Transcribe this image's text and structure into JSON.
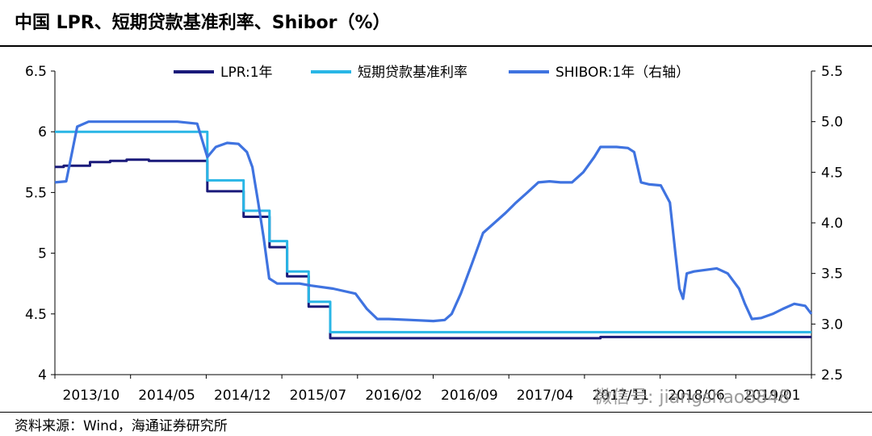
{
  "header": {
    "title": "中国 LPR、短期贷款基准利率、Shibor（%）"
  },
  "footer": {
    "source": "资料来源：Wind，海通证券研究所"
  },
  "watermark": {
    "text": "微信号: jiangshao8848"
  },
  "chart_data": {
    "type": "line",
    "title": "中国 LPR、短期贷款基准利率、Shibor（%）",
    "x_ticks": [
      "2013/10",
      "2014/05",
      "2014/12",
      "2015/07",
      "2016/02",
      "2016/09",
      "2017/04",
      "2017/11",
      "2018/06",
      "2019/01"
    ],
    "xlim": [
      "2013-10-01",
      "2019-06-01"
    ],
    "y_left": {
      "lim": [
        4,
        6.5
      ],
      "ticks": [
        "4",
        "4.5",
        "5",
        "5.5",
        "6",
        "6.5"
      ]
    },
    "y_right": {
      "lim": [
        2.5,
        5.5
      ],
      "ticks": [
        "2.5",
        "3.0",
        "3.5",
        "4.0",
        "4.5",
        "5.0",
        "5.5"
      ]
    },
    "legend_position": "top",
    "grid": false,
    "series": [
      {
        "name": "LPR:1年",
        "axis": "left",
        "color": "#1a1a7a",
        "step": true,
        "points": [
          [
            "2013-10-01",
            5.71
          ],
          [
            "2013-10-25",
            5.72
          ],
          [
            "2014-01-05",
            5.75
          ],
          [
            "2014-03-01",
            5.76
          ],
          [
            "2014-04-15",
            5.77
          ],
          [
            "2014-06-15",
            5.76
          ],
          [
            "2014-11-22",
            5.51
          ],
          [
            "2015-03-01",
            5.3
          ],
          [
            "2015-05-11",
            5.05
          ],
          [
            "2015-06-28",
            4.81
          ],
          [
            "2015-08-26",
            4.56
          ],
          [
            "2015-10-24",
            4.3
          ],
          [
            "2017-11-01",
            4.31
          ],
          [
            "2019-06-01",
            4.31
          ]
        ]
      },
      {
        "name": "短期贷款基准利率",
        "axis": "left",
        "color": "#29b6e6",
        "step": true,
        "points": [
          [
            "2013-10-01",
            6.0
          ],
          [
            "2014-11-22",
            5.6
          ],
          [
            "2015-03-01",
            5.35
          ],
          [
            "2015-05-11",
            5.1
          ],
          [
            "2015-06-28",
            4.85
          ],
          [
            "2015-08-26",
            4.6
          ],
          [
            "2015-10-24",
            4.35
          ],
          [
            "2019-06-01",
            4.35
          ]
        ]
      },
      {
        "name": "SHIBOR:1年（右轴）",
        "axis": "right",
        "color": "#3f73e0",
        "step": false,
        "points": [
          [
            "2013-10-01",
            4.4
          ],
          [
            "2013-11-01",
            4.41
          ],
          [
            "2013-12-01",
            4.95
          ],
          [
            "2014-01-01",
            5.0
          ],
          [
            "2014-02-01",
            5.0
          ],
          [
            "2014-04-01",
            5.0
          ],
          [
            "2014-06-01",
            5.0
          ],
          [
            "2014-09-01",
            5.0
          ],
          [
            "2014-10-25",
            4.98
          ],
          [
            "2014-11-22",
            4.65
          ],
          [
            "2014-12-15",
            4.75
          ],
          [
            "2015-01-15",
            4.79
          ],
          [
            "2015-02-15",
            4.78
          ],
          [
            "2015-03-10",
            4.7
          ],
          [
            "2015-03-25",
            4.55
          ],
          [
            "2015-04-10",
            4.2
          ],
          [
            "2015-04-25",
            3.85
          ],
          [
            "2015-05-10",
            3.45
          ],
          [
            "2015-06-01",
            3.4
          ],
          [
            "2015-07-01",
            3.4
          ],
          [
            "2015-08-01",
            3.4
          ],
          [
            "2015-09-01",
            3.38
          ],
          [
            "2015-11-01",
            3.35
          ],
          [
            "2016-01-01",
            3.3
          ],
          [
            "2016-02-01",
            3.15
          ],
          [
            "2016-03-01",
            3.05
          ],
          [
            "2016-04-01",
            3.05
          ],
          [
            "2016-06-01",
            3.04
          ],
          [
            "2016-08-01",
            3.03
          ],
          [
            "2016-09-01",
            3.04
          ],
          [
            "2016-09-20",
            3.1
          ],
          [
            "2016-10-15",
            3.3
          ],
          [
            "2016-11-15",
            3.6
          ],
          [
            "2016-12-15",
            3.9
          ],
          [
            "2017-01-15",
            4.0
          ],
          [
            "2017-02-15",
            4.1
          ],
          [
            "2017-03-15",
            4.2
          ],
          [
            "2017-04-15",
            4.3
          ],
          [
            "2017-05-15",
            4.4
          ],
          [
            "2017-06-15",
            4.41
          ],
          [
            "2017-07-15",
            4.4
          ],
          [
            "2017-08-15",
            4.4
          ],
          [
            "2017-09-15",
            4.5
          ],
          [
            "2017-10-15",
            4.65
          ],
          [
            "2017-11-01",
            4.75
          ],
          [
            "2017-12-15",
            4.75
          ],
          [
            "2018-01-15",
            4.74
          ],
          [
            "2018-02-01",
            4.7
          ],
          [
            "2018-02-20",
            4.4
          ],
          [
            "2018-03-15",
            4.38
          ],
          [
            "2018-04-15",
            4.37
          ],
          [
            "2018-05-10",
            4.2
          ],
          [
            "2018-05-25",
            3.7
          ],
          [
            "2018-06-05",
            3.35
          ],
          [
            "2018-06-15",
            3.25
          ],
          [
            "2018-06-25",
            3.5
          ],
          [
            "2018-07-15",
            3.52
          ],
          [
            "2018-09-15",
            3.55
          ],
          [
            "2018-10-15",
            3.5
          ],
          [
            "2018-11-15",
            3.35
          ],
          [
            "2018-12-01",
            3.2
          ],
          [
            "2018-12-20",
            3.05
          ],
          [
            "2019-01-15",
            3.06
          ],
          [
            "2019-02-15",
            3.1
          ],
          [
            "2019-03-15",
            3.15
          ],
          [
            "2019-04-15",
            3.2
          ],
          [
            "2019-05-15",
            3.18
          ],
          [
            "2019-06-01",
            3.1
          ]
        ]
      }
    ]
  }
}
